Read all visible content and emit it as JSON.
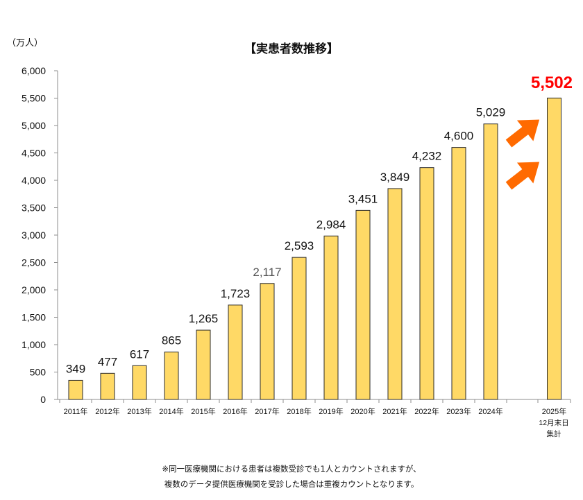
{
  "chart_data": {
    "type": "bar",
    "title": "【実患者数推移】",
    "unit_label": "（万人）",
    "categories": [
      "2011年",
      "2012年",
      "2013年",
      "2014年",
      "2015年",
      "2016年",
      "2017年",
      "2018年",
      "2019年",
      "2020年",
      "2021年",
      "2022年",
      "2023年",
      "2024年",
      "2025年"
    ],
    "last_category_note": [
      "12月末日",
      "集計"
    ],
    "values": [
      349,
      477,
      617,
      865,
      1265,
      1723,
      2117,
      2593,
      2984,
      3451,
      3849,
      4232,
      4600,
      5029,
      5502
    ],
    "value_labels": [
      "349",
      "477",
      "617",
      "865",
      "1,265",
      "1,723",
      "2,117",
      "2,593",
      "2,984",
      "3,451",
      "3,849",
      "4,232",
      "4,600",
      "5,029",
      "5,502"
    ],
    "ylim": [
      0,
      6000
    ],
    "yticks": [
      0,
      500,
      1000,
      1500,
      2000,
      2500,
      3000,
      3500,
      4000,
      4500,
      5000,
      5500,
      6000
    ],
    "ytick_labels": [
      "0",
      "500",
      "1,000",
      "1,500",
      "2,000",
      "2,500",
      "3,000",
      "3,500",
      "4,000",
      "4,500",
      "5,000",
      "5,500",
      "6,000"
    ],
    "grid": false,
    "highlight_index": 14,
    "colors": {
      "bar_fill": "#FFD966",
      "bar_stroke": "#2b2b2b",
      "highlight_label": "#FF0000",
      "arrow": "#FF6A00",
      "axis": "#8c8c8c"
    }
  },
  "footnote": {
    "line1": "※同一医療機関における患者は複数受診でも1人とカウントされますが、",
    "line2": "複数のデータ提供医療機関を受診した場合は重複カウントとなります。"
  }
}
